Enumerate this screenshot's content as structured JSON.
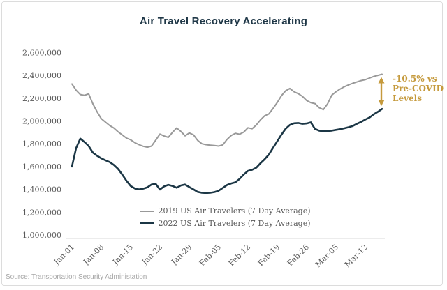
{
  "title": "Air Travel Recovery Accelerating",
  "source": "Source: Transportation Security Administation",
  "annotation": {
    "line1": "-10.5% vs",
    "line2": "Pre-COVID",
    "line3": "Levels",
    "color": "#c59a3d",
    "arrow_icon": "double-headed-vertical-arrow"
  },
  "colors": {
    "title": "#1f3747",
    "axis_text": "#595959",
    "axis_line": "#d9d9d9",
    "source_text": "#a6a6a6",
    "border": "#dcdcdc",
    "background": "#ffffff",
    "gold": "#c59a3d",
    "series_2019": "#999999",
    "series_2022": "#1b3645"
  },
  "chart_data": {
    "type": "line",
    "title": "Air Travel Recovery Accelerating",
    "xlabel": "",
    "ylabel": "",
    "grid": false,
    "legend_position": "bottom-center",
    "ylim": [
      1000000,
      2600000
    ],
    "y_ticks": [
      {
        "label": "2,600,000",
        "value": 2600000
      },
      {
        "label": "2,400,000",
        "value": 2400000
      },
      {
        "label": "2,200,000",
        "value": 2200000
      },
      {
        "label": "2,000,000",
        "value": 2000000
      },
      {
        "label": "1,800,000",
        "value": 1800000
      },
      {
        "label": "1,600,000",
        "value": 1600000
      },
      {
        "label": "1,400,000",
        "value": 1400000
      },
      {
        "label": "1,200,000",
        "value": 1200000
      },
      {
        "label": "1,000,000",
        "value": 1000000
      }
    ],
    "x_tick_labels": [
      "Jan-01",
      "Jan-08",
      "Jan-15",
      "Jan-22",
      "Jan-29",
      "Feb-05",
      "Feb-12",
      "Feb-19",
      "Feb-26",
      "Mar-05",
      "Mar-12"
    ],
    "x_is_daily_from": "Jan-01",
    "series": [
      {
        "name": "2019 US Air Travelers (7 Day Average)",
        "color": "#999999",
        "width": 2,
        "values": [
          2325000,
          2270000,
          2232000,
          2225000,
          2238000,
          2150000,
          2080000,
          2020000,
          1990000,
          1960000,
          1938000,
          1905000,
          1878000,
          1850000,
          1835000,
          1810000,
          1792000,
          1778000,
          1770000,
          1780000,
          1832000,
          1885000,
          1868000,
          1856000,
          1900000,
          1938000,
          1908000,
          1870000,
          1895000,
          1878000,
          1830000,
          1800000,
          1792000,
          1788000,
          1784000,
          1780000,
          1790000,
          1838000,
          1872000,
          1892000,
          1884000,
          1902000,
          1940000,
          1932000,
          1965000,
          2010000,
          2046000,
          2062000,
          2110000,
          2162000,
          2222000,
          2265000,
          2285000,
          2256000,
          2240000,
          2216000,
          2180000,
          2160000,
          2152000,
          2116000,
          2100000,
          2150000,
          2226000,
          2256000,
          2280000,
          2300000,
          2316000,
          2330000,
          2342000,
          2354000,
          2362000,
          2376000,
          2390000,
          2400000,
          2410000
        ]
      },
      {
        "name": "2022 US Air Travelers (7 Day Average)",
        "color": "#1b3645",
        "width": 2.6,
        "values": [
          1600000,
          1762000,
          1845000,
          1815000,
          1780000,
          1722000,
          1695000,
          1672000,
          1655000,
          1640000,
          1614000,
          1580000,
          1530000,
          1476000,
          1430000,
          1408000,
          1400000,
          1406000,
          1418000,
          1442000,
          1448000,
          1398000,
          1426000,
          1440000,
          1430000,
          1414000,
          1434000,
          1442000,
          1420000,
          1400000,
          1378000,
          1370000,
          1368000,
          1370000,
          1376000,
          1388000,
          1412000,
          1438000,
          1452000,
          1462000,
          1492000,
          1530000,
          1562000,
          1572000,
          1590000,
          1630000,
          1665000,
          1706000,
          1765000,
          1822000,
          1880000,
          1932000,
          1965000,
          1980000,
          1982000,
          1975000,
          1978000,
          1988000,
          1930000,
          1915000,
          1910000,
          1912000,
          1915000,
          1922000,
          1928000,
          1936000,
          1945000,
          1956000,
          1975000,
          1992000,
          2012000,
          2030000,
          2058000,
          2080000,
          2105000
        ]
      }
    ]
  }
}
